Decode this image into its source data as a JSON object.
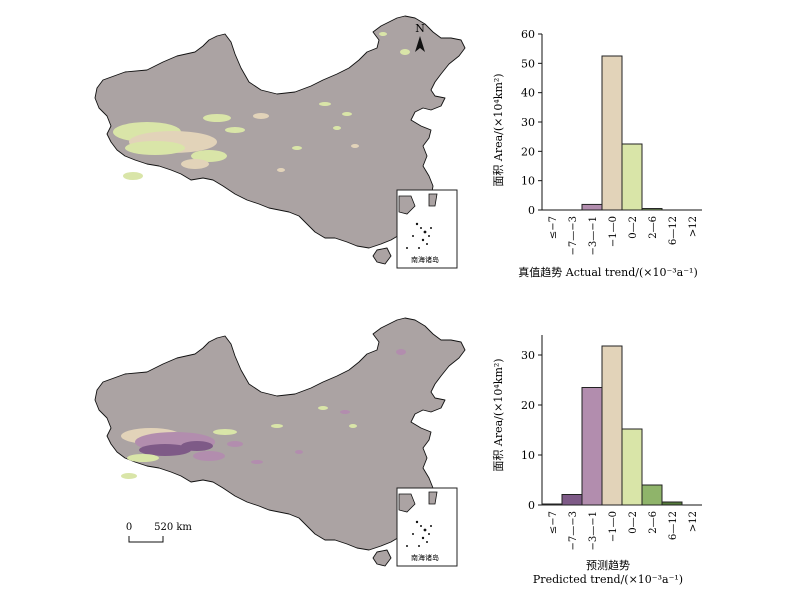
{
  "maps": {
    "north_label": "N",
    "inset_label": "南海诸岛",
    "scale_zero": "0",
    "scale_value": "520 km"
  },
  "colors": {
    "land": "#aba3a3",
    "border": "#111111",
    "bin_-7_-3": "#7e5a87",
    "bin_-3_-1": "#b28dae",
    "bin_-1_0": "#e2d3b9",
    "bin_0_2": "#d9e5a8",
    "bin_2_6": "#8fb46a",
    "bin_6_12": "#547a3a"
  },
  "chart_data": [
    {
      "type": "bar",
      "categories": [
        "≤−7",
        "−7—−3",
        "−3—−1",
        "−1—0",
        "0—2",
        "2—6",
        "6—12",
        ">12"
      ],
      "values": [
        0,
        0,
        1.9,
        52.5,
        22.5,
        0.5,
        0,
        0
      ],
      "ylim": [
        0,
        60
      ],
      "yticks": [
        0,
        10,
        20,
        30,
        40,
        50,
        60
      ],
      "ylabel": "面积  Area/(×10⁴km²)",
      "xlabel": "真值趋势  Actual trend/(×10⁻³a⁻¹)",
      "grid": false
    },
    {
      "type": "bar",
      "categories": [
        "≤−7",
        "−7—−3",
        "−3—−1",
        "−1—0",
        "0—2",
        "2—6",
        "6—12",
        ">12"
      ],
      "values": [
        0.2,
        2.1,
        23.5,
        31.8,
        15.2,
        4.0,
        0.6,
        0
      ],
      "ylim": [
        0,
        34
      ],
      "yticks": [
        0,
        10,
        20,
        30
      ],
      "ylabel": "面积  Area/(×10⁴km²)",
      "xlabel": "预测趋势",
      "xlabel2": "Predicted trend/(×10⁻³a⁻¹)",
      "grid": false
    }
  ]
}
